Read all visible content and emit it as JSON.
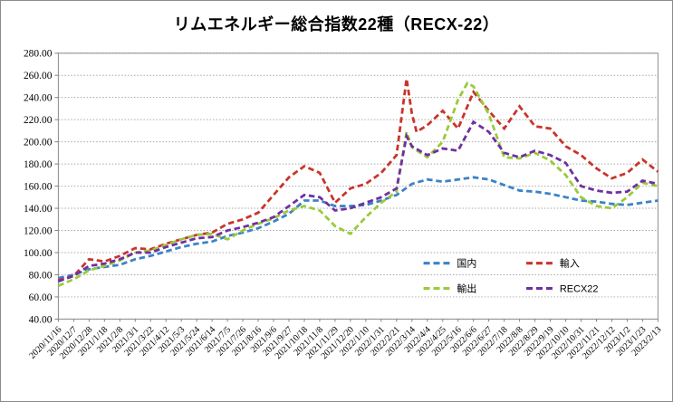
{
  "chart_data": {
    "type": "line",
    "title": "リムエネルギー総合指数22種（RECX-22）",
    "line_style": "dashed",
    "grid": "horizontal-dotted",
    "legend_position": "inside-lower-right",
    "ylim": [
      40,
      280
    ],
    "y_ticks": [
      "280.00",
      "260.00",
      "240.00",
      "220.00",
      "200.00",
      "180.00",
      "160.00",
      "140.00",
      "120.00",
      "100.00",
      "80.00",
      "60.00",
      "40.00"
    ],
    "categories": [
      "2020/11/16",
      "2020/12/7",
      "2020/12/28",
      "2021/1/18",
      "2021/2/8",
      "2021/3/1",
      "2021/3/22",
      "2021/4/12",
      "2021/5/3",
      "2021/5/24",
      "2021/6/14",
      "2021/7/5",
      "2021/7/26",
      "2021/8/16",
      "2021/9/6",
      "2021/9/27",
      "2021/10/18",
      "2021/11/8",
      "2021/11/29",
      "2021/12/20",
      "2022/1/10",
      "2022/1/31",
      "2022/2/21",
      "2022/3/14",
      "2022/4/4",
      "2022/4/25",
      "2022/5/16",
      "2022/6/6",
      "2022/6/27",
      "2022/7/18",
      "2022/8/8",
      "2022/8/29",
      "2022/9/19",
      "2022/10/10",
      "2022/10/31",
      "2022/11/21",
      "2022/12/12",
      "2023/1/2",
      "2023/1/23",
      "2023/2/13"
    ],
    "series": [
      {
        "name": "国内",
        "color": "#3c82c8",
        "values": [
          77,
          80,
          85,
          87,
          89,
          94,
          97,
          101,
          105,
          108,
          110,
          115,
          118,
          122,
          128,
          135,
          147,
          147,
          142,
          142,
          143,
          147,
          152,
          162,
          166,
          164,
          166,
          168,
          166,
          161,
          156,
          155,
          153,
          150,
          147,
          146,
          144,
          143,
          145,
          147
        ],
        "extra_points": []
      },
      {
        "name": "輸入",
        "color": "#c9342c",
        "values": [
          75,
          79,
          94,
          92,
          97,
          104,
          103,
          108,
          112,
          116,
          118,
          126,
          130,
          136,
          152,
          168,
          178,
          172,
          145,
          158,
          162,
          172,
          188,
          225,
          215,
          228,
          212,
          245,
          228,
          212,
          232,
          214,
          212,
          196,
          188,
          176,
          167,
          172,
          184,
          173
        ],
        "extra_points": [
          {
            "i": 22.65,
            "v": 257
          },
          {
            "i": 23.3,
            "v": 209
          }
        ]
      },
      {
        "name": "輸出",
        "color": "#9aca3a",
        "values": [
          70,
          76,
          84,
          88,
          93,
          100,
          102,
          107,
          112,
          116,
          117,
          112,
          120,
          126,
          131,
          138,
          142,
          138,
          124,
          117,
          132,
          145,
          155,
          195,
          186,
          200,
          238,
          250,
          225,
          186,
          185,
          190,
          183,
          170,
          150,
          142,
          140,
          150,
          163,
          160
        ],
        "extra_points": [
          {
            "i": 22.65,
            "v": 209
          },
          {
            "i": 26.6,
            "v": 253
          }
        ]
      },
      {
        "name": "RECX22",
        "color": "#7030a0",
        "values": [
          74,
          79,
          88,
          90,
          94,
          100,
          100,
          105,
          109,
          113,
          114,
          120,
          123,
          127,
          132,
          142,
          152,
          150,
          138,
          140,
          145,
          150,
          158,
          196,
          188,
          194,
          192,
          218,
          209,
          190,
          186,
          192,
          188,
          181,
          160,
          156,
          154,
          155,
          165,
          162
        ],
        "extra_points": [
          {
            "i": 22.65,
            "v": 205
          }
        ]
      }
    ]
  }
}
